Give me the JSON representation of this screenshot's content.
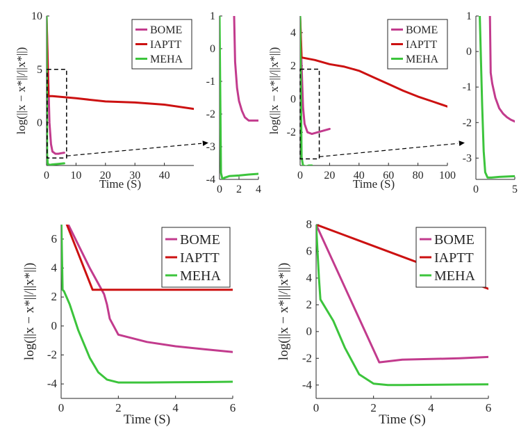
{
  "colors": {
    "BOME": "#c23b8d",
    "IAPTT": "#cc1111",
    "MEHA": "#3cc43c"
  },
  "chart_data": [
    {
      "id": "top-left-main",
      "type": "line",
      "xlabel": "Time (S)",
      "ylabel": "log(||x − x*||/||x*||)",
      "xlim": [
        0,
        50
      ],
      "ylim": [
        -4,
        10
      ],
      "xticks": [
        0,
        10,
        20,
        30,
        40
      ],
      "yticks": [
        0,
        5,
        10
      ],
      "legend": true,
      "legend_position": "top-right",
      "series": [
        {
          "name": "BOME",
          "x": [
            0,
            0.5,
            1,
            1.5,
            2,
            3,
            4,
            5,
            6
          ],
          "y": [
            10,
            5,
            0,
            -2,
            -2.7,
            -2.9,
            -2.9,
            -2.85,
            -2.8
          ]
        },
        {
          "name": "IAPTT",
          "x": [
            0,
            0.6,
            2,
            10,
            20,
            30,
            40,
            50
          ],
          "y": [
            10,
            2.5,
            2.5,
            2.3,
            2.0,
            1.9,
            1.7,
            1.3
          ]
        },
        {
          "name": "MEHA",
          "x": [
            0,
            0.2,
            0.4,
            1,
            2,
            4,
            6
          ],
          "y": [
            10,
            -3,
            -3.85,
            -3.95,
            -3.9,
            -3.85,
            -3.8
          ]
        }
      ]
    },
    {
      "id": "top-left-zoom",
      "type": "line",
      "xlabel": "",
      "ylabel": "",
      "xlim": [
        0,
        4
      ],
      "ylim": [
        -4,
        1
      ],
      "xticks": [
        0,
        2,
        4
      ],
      "yticks": [
        -4,
        -3,
        -2,
        -1,
        0,
        1
      ],
      "legend": false,
      "series": [
        {
          "name": "BOME",
          "x": [
            1.5,
            1.6,
            1.8,
            2.0,
            2.3,
            2.6,
            3,
            3.5,
            4
          ],
          "y": [
            1,
            -0.4,
            -1.2,
            -1.6,
            -1.9,
            -2.1,
            -2.2,
            -2.2,
            -2.2
          ]
        },
        {
          "name": "MEHA",
          "x": [
            0,
            0.15,
            0.3,
            0.5,
            1,
            2,
            3,
            4
          ],
          "y": [
            1,
            -3.8,
            -4.0,
            -3.95,
            -3.9,
            -3.88,
            -3.85,
            -3.83
          ]
        }
      ]
    },
    {
      "id": "top-right-main",
      "type": "line",
      "xlabel": "Time (S)",
      "ylabel": "log(||x − x*||/||x*||)",
      "xlim": [
        0,
        100
      ],
      "ylim": [
        -4,
        5
      ],
      "xticks": [
        0,
        20,
        40,
        60,
        80,
        100
      ],
      "yticks": [
        -2,
        0,
        2,
        4
      ],
      "legend": true,
      "legend_position": "top-right",
      "series": [
        {
          "name": "BOME",
          "x": [
            0,
            1,
            2,
            3,
            5,
            8,
            12,
            16,
            20
          ],
          "y": [
            5,
            2,
            -0.5,
            -1.5,
            -2.0,
            -2.1,
            -2.0,
            -1.9,
            -1.8
          ]
        },
        {
          "name": "IAPTT",
          "x": [
            0,
            1,
            10,
            20,
            30,
            40,
            50,
            60,
            70,
            80,
            90,
            100
          ],
          "y": [
            5,
            2.5,
            2.35,
            2.1,
            1.95,
            1.7,
            1.3,
            0.9,
            0.5,
            0.15,
            -0.15,
            -0.45
          ]
        },
        {
          "name": "MEHA",
          "x": [
            0,
            1,
            2,
            4,
            6,
            8
          ],
          "y": [
            5,
            -3.5,
            -4.0,
            -4.05,
            -4.0,
            -4.0
          ]
        }
      ]
    },
    {
      "id": "top-right-zoom",
      "type": "line",
      "xlabel": "",
      "ylabel": "",
      "xlim": [
        0,
        5
      ],
      "ylim": [
        -3.6,
        1
      ],
      "xticks": [
        0,
        5
      ],
      "yticks": [
        -3,
        -2,
        -1,
        0,
        1
      ],
      "legend": false,
      "series": [
        {
          "name": "BOME",
          "x": [
            1.8,
            1.9,
            2.1,
            2.5,
            3,
            3.5,
            4,
            4.5,
            5
          ],
          "y": [
            1,
            -0.6,
            -0.9,
            -1.3,
            -1.6,
            -1.75,
            -1.85,
            -1.92,
            -1.97
          ]
        },
        {
          "name": "MEHA",
          "x": [
            0.5,
            0.8,
            1.0,
            1.2,
            1.5,
            2,
            3,
            4,
            5
          ],
          "y": [
            1,
            -1.5,
            -2.8,
            -3.4,
            -3.55,
            -3.55,
            -3.53,
            -3.52,
            -3.51
          ]
        }
      ]
    },
    {
      "id": "bottom-left",
      "type": "line",
      "xlabel": "Time (S)",
      "ylabel": "log(||x − x*||/||x*||)",
      "xlim": [
        0,
        6
      ],
      "ylim": [
        -5,
        7
      ],
      "xticks": [
        0,
        2,
        4,
        6
      ],
      "yticks": [
        -4,
        -2,
        0,
        2,
        4,
        6
      ],
      "legend": true,
      "legend_position": "top-right",
      "series": [
        {
          "name": "BOME",
          "x": [
            0,
            0.5,
            1,
            1.5,
            1.6,
            1.7,
            2,
            3,
            4,
            5,
            6
          ],
          "y": [
            8,
            6,
            4,
            2.2,
            1.5,
            0.5,
            -0.6,
            -1.1,
            -1.4,
            -1.6,
            -1.8
          ]
        },
        {
          "name": "IAPTT",
          "x": [
            0,
            1.1,
            2,
            3,
            4,
            5,
            6
          ],
          "y": [
            8,
            2.5,
            2.5,
            2.5,
            2.5,
            2.5,
            2.5
          ]
        },
        {
          "name": "MEHA",
          "x": [
            0,
            0.05,
            0.1,
            0.3,
            0.6,
            1.0,
            1.3,
            1.6,
            2,
            3,
            4,
            5,
            6
          ],
          "y": [
            8,
            2.5,
            2.4,
            1.5,
            -0.3,
            -2.2,
            -3.2,
            -3.7,
            -3.9,
            -3.9,
            -3.88,
            -3.87,
            -3.85
          ]
        }
      ]
    },
    {
      "id": "bottom-right",
      "type": "line",
      "xlabel": "Time (S)",
      "ylabel": "log(||x − x*||/||x*||)",
      "xlim": [
        0,
        6
      ],
      "ylim": [
        -5,
        8
      ],
      "xticks": [
        0,
        2,
        4,
        6
      ],
      "yticks": [
        -4,
        -2,
        0,
        2,
        4,
        6,
        8
      ],
      "legend": true,
      "legend_position": "top-right",
      "series": [
        {
          "name": "BOME",
          "x": [
            0,
            2.2,
            3,
            4,
            5,
            6
          ],
          "y": [
            8,
            -2.3,
            -2.1,
            -2.05,
            -2.0,
            -1.9
          ]
        },
        {
          "name": "IAPTT",
          "x": [
            0,
            1,
            2,
            3,
            4,
            5,
            6
          ],
          "y": [
            8,
            7.2,
            6.4,
            5.6,
            4.8,
            4.0,
            3.2
          ]
        },
        {
          "name": "MEHA",
          "x": [
            0,
            0.1,
            0.15,
            0.6,
            1.0,
            1.5,
            2,
            2.5,
            3,
            4,
            5,
            6
          ],
          "y": [
            8,
            4,
            2.4,
            0.8,
            -1.2,
            -3.2,
            -3.9,
            -4.0,
            -4.0,
            -3.98,
            -3.96,
            -3.95
          ]
        }
      ]
    }
  ],
  "zoom_boxes": [
    {
      "panel": "top-left-main",
      "x0": 0.2,
      "x1": 6.8,
      "y0": -3.3,
      "y1": 5,
      "target": "top-left-zoom"
    },
    {
      "panel": "top-right-main",
      "x0": 0,
      "x1": 13,
      "y0": -3.6,
      "y1": 1.8,
      "target": "top-right-zoom"
    }
  ]
}
